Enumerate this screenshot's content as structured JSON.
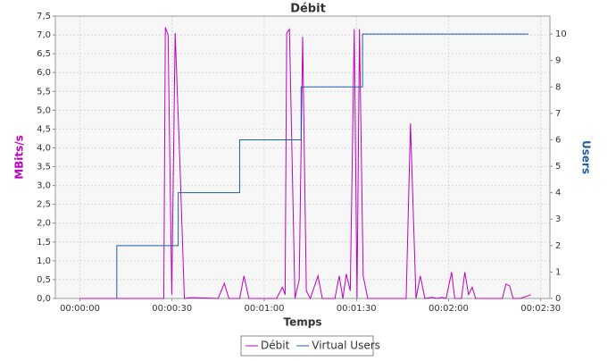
{
  "chart_data": {
    "type": "line",
    "title": "Débit",
    "x_label": "Temps",
    "y_label": "MBits/s",
    "y2_label": "Users",
    "y_label_color": "#c000c0",
    "y2_label_color": "#1f5fa8",
    "xlim": [
      -8,
      153
    ],
    "ylim": [
      0,
      7.5
    ],
    "y2lim": [
      0,
      10.68
    ],
    "xticks": [
      {
        "value": 0,
        "label": "00:00:00"
      },
      {
        "value": 30,
        "label": "00:00:30"
      },
      {
        "value": 60,
        "label": "00:01:00"
      },
      {
        "value": 90,
        "label": "00:01:30"
      },
      {
        "value": 120,
        "label": "00:02:00"
      },
      {
        "value": 150,
        "label": "00:02:30"
      }
    ],
    "yticks": [
      {
        "value": 0,
        "label": "0,0"
      },
      {
        "value": 0.5,
        "label": "0,5"
      },
      {
        "value": 1,
        "label": "1,0"
      },
      {
        "value": 1.5,
        "label": "1,5"
      },
      {
        "value": 2,
        "label": "2,0"
      },
      {
        "value": 2.5,
        "label": "2,5"
      },
      {
        "value": 3,
        "label": "3,0"
      },
      {
        "value": 3.5,
        "label": "3,5"
      },
      {
        "value": 4,
        "label": "4,0"
      },
      {
        "value": 4.5,
        "label": "4,5"
      },
      {
        "value": 5,
        "label": "5,0"
      },
      {
        "value": 5.5,
        "label": "5,5"
      },
      {
        "value": 6,
        "label": "6,0"
      },
      {
        "value": 6.5,
        "label": "6,5"
      },
      {
        "value": 7,
        "label": "7,0"
      },
      {
        "value": 7.5,
        "label": "7,5"
      }
    ],
    "y2ticks": [
      0,
      1,
      2,
      3,
      4,
      5,
      6,
      7,
      8,
      9,
      10
    ],
    "grid": true,
    "series": [
      {
        "name": "Débit",
        "color": "#c000c0",
        "x": [
          0,
          27.3,
          27.8,
          28.7,
          29.9,
          31,
          32.5,
          34,
          36,
          37.4,
          45,
          47,
          48.5,
          52,
          53.4,
          55,
          64,
          65.9,
          66.8,
          67.3,
          68.2,
          70,
          71.4,
          72.5,
          73.7,
          75,
          77.5,
          78.9,
          83,
          84.4,
          85.6,
          86.7,
          88,
          89.3,
          90.2,
          91,
          92.2,
          93.7,
          106.2,
          107.6,
          109.4,
          110.8,
          112.3,
          114.6,
          116.3,
          117.8,
          119.2,
          121,
          122,
          124.2,
          125.3,
          126.5,
          127.7,
          128.8,
          137.5,
          138.7,
          139.9,
          141,
          143.4,
          146.8
        ],
        "values": [
          0,
          0,
          7.2,
          7,
          0.1,
          7.05,
          3.7,
          0,
          0.02,
          0.02,
          0,
          0.4,
          0,
          0,
          0.6,
          0,
          0,
          0.3,
          0.1,
          7.05,
          7.15,
          0,
          0.5,
          6.95,
          0.2,
          0,
          0.6,
          0,
          0,
          0.6,
          0,
          0.65,
          0.2,
          7.15,
          0,
          7.15,
          0.6,
          0,
          0,
          4.65,
          0,
          0.6,
          0,
          0.03,
          0,
          0.03,
          0,
          0.7,
          0,
          0,
          0.7,
          0.1,
          0.3,
          0,
          0,
          0.38,
          0.33,
          0,
          0,
          0.1
        ]
      },
      {
        "name": "Virtual Users",
        "color": "#1f5fa8",
        "axis": "y2",
        "x": [
          12,
          12,
          32,
          32,
          52,
          52,
          72,
          72,
          92,
          92,
          146
        ],
        "values": [
          0,
          2,
          2,
          4,
          4,
          6,
          6,
          8,
          8,
          10,
          10
        ]
      }
    ]
  }
}
